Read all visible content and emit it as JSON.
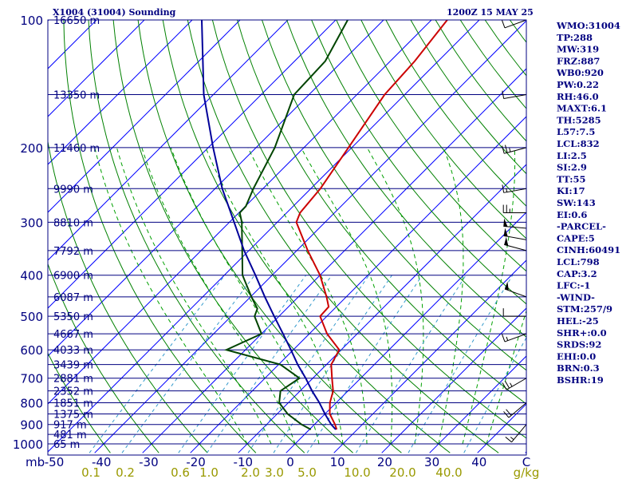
{
  "chart_data": {
    "type": "skew-t",
    "title": "X1004 (31004) Sounding",
    "time": "1200Z 15 MAY 25",
    "pressure_levels": [
      100,
      200,
      300,
      400,
      500,
      600,
      700,
      800,
      900,
      1000
    ],
    "pressure_unit": "mb",
    "temperature_ticks": [
      "-50",
      "-40",
      "-30",
      "-20",
      "-10",
      "0",
      "10",
      "20",
      "30",
      "40",
      "C"
    ],
    "mixing_ratio_ticks": [
      "0.1",
      "0.2",
      "0.6",
      "1.0",
      "2.0",
      "3.0",
      "5.0",
      "10.0",
      "20.0",
      "40.0",
      "g/kg"
    ],
    "height_labels": [
      {
        "p": 100,
        "label": "16650 m"
      },
      {
        "p": 150,
        "label": "13350 m"
      },
      {
        "p": 200,
        "label": "11460 m"
      },
      {
        "p": 250,
        "label": "9990 m"
      },
      {
        "p": 300,
        "label": "8810 m"
      },
      {
        "p": 350,
        "label": "7792 m"
      },
      {
        "p": 400,
        "label": "6900 m"
      },
      {
        "p": 450,
        "label": "6087 m"
      },
      {
        "p": 500,
        "label": "5350 m"
      },
      {
        "p": 550,
        "label": "4667 m"
      },
      {
        "p": 600,
        "label": "4033 m"
      },
      {
        "p": 650,
        "label": "3439 m"
      },
      {
        "p": 700,
        "label": "2881 m"
      },
      {
        "p": 750,
        "label": "2352 m"
      },
      {
        "p": 800,
        "label": "1851 m"
      },
      {
        "p": 850,
        "label": "1375 m"
      },
      {
        "p": 900,
        "label": "917 m"
      },
      {
        "p": 950,
        "label": "481 m"
      },
      {
        "p": 1000,
        "label": "65 m"
      }
    ],
    "temperature_profile": [
      {
        "p": 925,
        "t": 5.7
      },
      {
        "p": 900,
        "t": 4.3
      },
      {
        "p": 850,
        "t": 1.0
      },
      {
        "p": 800,
        "t": -1.3
      },
      {
        "p": 750,
        "t": -3.1
      },
      {
        "p": 700,
        "t": -6.0
      },
      {
        "p": 650,
        "t": -9.0
      },
      {
        "p": 600,
        "t": -10.4
      },
      {
        "p": 550,
        "t": -16.3
      },
      {
        "p": 500,
        "t": -21.4
      },
      {
        "p": 475,
        "t": -21.6
      },
      {
        "p": 450,
        "t": -24.1
      },
      {
        "p": 400,
        "t": -30.0
      },
      {
        "p": 350,
        "t": -37.7
      },
      {
        "p": 300,
        "t": -46.0
      },
      {
        "p": 285,
        "t": -47.2
      },
      {
        "p": 250,
        "t": -48.0
      },
      {
        "p": 200,
        "t": -50.7
      },
      {
        "p": 150,
        "t": -54.2
      },
      {
        "p": 125,
        "t": -54.9
      },
      {
        "p": 100,
        "t": -56.7
      },
      {
        "p": 90,
        "t": -57.5
      }
    ],
    "dewpoint_profile": [
      {
        "p": 925,
        "td": 0.3
      },
      {
        "p": 900,
        "td": -2.7
      },
      {
        "p": 850,
        "td": -7.8
      },
      {
        "p": 800,
        "td": -11.9
      },
      {
        "p": 750,
        "td": -14.1
      },
      {
        "p": 700,
        "td": -12.8
      },
      {
        "p": 650,
        "td": -19.6
      },
      {
        "p": 600,
        "td": -34.0
      },
      {
        "p": 550,
        "td": -30.0
      },
      {
        "p": 500,
        "td": -35.1
      },
      {
        "p": 480,
        "td": -36.1
      },
      {
        "p": 450,
        "td": -39.8
      },
      {
        "p": 400,
        "td": -46.2
      },
      {
        "p": 350,
        "td": -51.4
      },
      {
        "p": 300,
        "td": -57.4
      },
      {
        "p": 285,
        "td": -59.8
      },
      {
        "p": 275,
        "td": -59.9
      },
      {
        "p": 250,
        "td": -62.0
      },
      {
        "p": 200,
        "td": -66.1
      },
      {
        "p": 150,
        "td": -73.1
      },
      {
        "p": 125,
        "td": -73.6
      },
      {
        "p": 100,
        "td": -77.5
      },
      {
        "p": 90,
        "td": -77.0
      }
    ],
    "parcel_profile": [
      {
        "p": 925,
        "t": 5.5
      },
      {
        "p": 900,
        "t": 3.5
      },
      {
        "p": 850,
        "t": 0.0
      },
      {
        "p": 800,
        "t": -3.5
      },
      {
        "p": 750,
        "t": -7.5
      },
      {
        "p": 700,
        "t": -11.5
      },
      {
        "p": 650,
        "t": -16.0
      },
      {
        "p": 600,
        "t": -20.5
      },
      {
        "p": 550,
        "t": -25.5
      },
      {
        "p": 500,
        "t": -31.0
      },
      {
        "p": 450,
        "t": -37.0
      },
      {
        "p": 400,
        "t": -43.5
      },
      {
        "p": 350,
        "t": -51.0
      },
      {
        "p": 300,
        "t": -59.0
      },
      {
        "p": 250,
        "t": -68.5
      },
      {
        "p": 200,
        "t": -79.0
      },
      {
        "p": 150,
        "t": -92.0
      },
      {
        "p": 100,
        "t": -108.0
      }
    ],
    "indices": [
      "WMO:31004",
      "TP:288",
      "MW:319",
      "FRZ:887",
      "WB0:920",
      "PW:0.22",
      "RH:46.0",
      "MAXT:6.1",
      "TH:5285",
      "L57:7.5",
      "LCL:832",
      "LI:2.5",
      "SI:2.9",
      "TT:55",
      "KI:17",
      "SW:143",
      "EI:0.6",
      "-PARCEL-",
      "CAPE:5",
      "CINH:60491",
      "LCL:798",
      "CAP:3.2",
      "LFC:-1",
      "-WIND-",
      "STM:257/9",
      "HEL:-25",
      "SHR+:0.0",
      "SRDS:92",
      "EHI:0.0",
      "BRN:0.3",
      "BSHR:19"
    ],
    "wind_barbs": [
      {
        "p": 100,
        "dir": 250,
        "spd": 10
      },
      {
        "p": 150,
        "dir": 260,
        "spd": 10
      },
      {
        "p": 200,
        "dir": 255,
        "spd": 25
      },
      {
        "p": 250,
        "dir": 260,
        "spd": 15
      },
      {
        "p": 285,
        "dir": 270,
        "spd": 25
      },
      {
        "p": 310,
        "dir": 275,
        "spd": 50
      },
      {
        "p": 330,
        "dir": 280,
        "spd": 50
      },
      {
        "p": 350,
        "dir": 285,
        "spd": 50
      },
      {
        "p": 450,
        "dir": 290,
        "spd": 50
      },
      {
        "p": 500,
        "dir": 270,
        "spd": 10
      },
      {
        "p": 550,
        "dir": 250,
        "spd": 15
      },
      {
        "p": 700,
        "dir": 240,
        "spd": 25
      },
      {
        "p": 800,
        "dir": 230,
        "spd": 20
      },
      {
        "p": 900,
        "dir": 220,
        "spd": 15
      }
    ],
    "xlabel": "C",
    "ylabel": "mb",
    "xlim": [
      -50,
      50
    ],
    "ylim": [
      1050,
      100
    ],
    "log_pressure": true,
    "colors": {
      "isobar": "#000080",
      "isotherm": "#0000ff",
      "dry_adiabat": "#008000",
      "moist_adiabat": "#00a000",
      "mixing_ratio": "#808080",
      "temperature": "#cc0000",
      "dewpoint": "#004400",
      "parcel": "#000099",
      "text": "#000080",
      "mixing_label": "#999900"
    }
  }
}
